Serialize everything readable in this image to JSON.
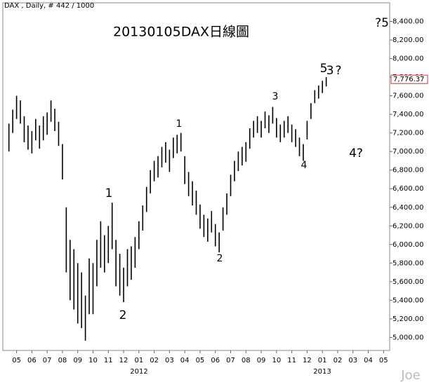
{
  "chart_data": {
    "type": "range-bar",
    "title": "20130105DAX日線圖",
    "header": "DAX , Daily, # 442 / 1000",
    "watermark": "Joe",
    "color": "#000000",
    "x": [
      -0.5,
      -0.25,
      0,
      0.25,
      0.5,
      0.75,
      1,
      1.25,
      1.5,
      1.75,
      2,
      2.25,
      2.5,
      2.75,
      3,
      3.25,
      3.5,
      3.75,
      4,
      4.25,
      4.5,
      4.75,
      5,
      5.25,
      5.5,
      5.75,
      6,
      6.25,
      6.5,
      6.75,
      7,
      7.25,
      7.5,
      7.75,
      8,
      8.25,
      8.5,
      8.75,
      9,
      9.25,
      9.5,
      9.75,
      10,
      10.25,
      10.5,
      10.75,
      11,
      11.25,
      11.5,
      11.75,
      12,
      12.25,
      12.5,
      12.75,
      13,
      13.25,
      13.5,
      13.75,
      14,
      14.25,
      14.5,
      14.75,
      15,
      15.25,
      15.5,
      15.75,
      16,
      16.25,
      16.5,
      16.75,
      17,
      17.25,
      17.5,
      17.75,
      18,
      18.25,
      18.5,
      18.75,
      19,
      19.25,
      19.5,
      19.75,
      20,
      20.25
    ],
    "high": [
      7300,
      7450,
      7600,
      7550,
      7380,
      7280,
      7220,
      7350,
      7280,
      7380,
      7420,
      7550,
      7460,
      7320,
      7080,
      6400,
      6050,
      5950,
      5800,
      5700,
      5450,
      5850,
      5800,
      6050,
      6250,
      6100,
      6200,
      6450,
      6050,
      5900,
      5750,
      5950,
      5980,
      6080,
      6250,
      6420,
      6620,
      6800,
      6900,
      6950,
      7050,
      7100,
      7020,
      7150,
      7180,
      7200,
      6950,
      6780,
      6680,
      6580,
      6430,
      6320,
      6280,
      6360,
      6220,
      6130,
      6400,
      6550,
      6750,
      6900,
      7000,
      7050,
      7100,
      7250,
      7330,
      7380,
      7330,
      7430,
      7390,
      7480,
      7360,
      7290,
      7330,
      7380,
      7290,
      7240,
      7150,
      7080,
      7330,
      7520,
      7660,
      7710,
      7760,
      7800
    ],
    "low": [
      7000,
      7200,
      7350,
      7300,
      7100,
      7020,
      6980,
      7120,
      7030,
      7120,
      7180,
      7320,
      7220,
      7060,
      6700,
      5700,
      5400,
      5300,
      5150,
      5100,
      4965,
      5250,
      5250,
      5550,
      5750,
      5700,
      5800,
      5950,
      5550,
      5450,
      5380,
      5550,
      5620,
      5750,
      5950,
      6150,
      6350,
      6550,
      6680,
      6720,
      6830,
      6880,
      6780,
      6930,
      6980,
      7000,
      6650,
      6520,
      6420,
      6320,
      6170,
      6080,
      6030,
      6130,
      5980,
      5915,
      6150,
      6320,
      6520,
      6680,
      6790,
      6850,
      6890,
      7030,
      7150,
      7200,
      7150,
      7250,
      7200,
      7300,
      7150,
      7100,
      7150,
      7200,
      7100,
      7050,
      6950,
      6900,
      7130,
      7350,
      7520,
      7570,
      7630,
      7700
    ],
    "last_value": 7776.37,
    "last_value_label": "7,776.37",
    "last_value_color": "#e03030",
    "xlim": [
      -0.9,
      24.4
    ],
    "ylim": [
      4860,
      8600
    ],
    "xticks": [
      {
        "value": 0,
        "label": "05"
      },
      {
        "value": 1,
        "label": "06"
      },
      {
        "value": 2,
        "label": "07"
      },
      {
        "value": 3,
        "label": "08"
      },
      {
        "value": 4,
        "label": "09"
      },
      {
        "value": 5,
        "label": "10"
      },
      {
        "value": 6,
        "label": "11"
      },
      {
        "value": 7,
        "label": "12"
      },
      {
        "value": 8,
        "label": "01"
      },
      {
        "value": 9,
        "label": "02"
      },
      {
        "value": 10,
        "label": "03"
      },
      {
        "value": 11,
        "label": "04"
      },
      {
        "value": 12,
        "label": "05"
      },
      {
        "value": 13,
        "label": "06"
      },
      {
        "value": 14,
        "label": "07"
      },
      {
        "value": 15,
        "label": "08"
      },
      {
        "value": 16,
        "label": "09"
      },
      {
        "value": 17,
        "label": "10"
      },
      {
        "value": 18,
        "label": "11"
      },
      {
        "value": 19,
        "label": "12"
      },
      {
        "value": 20,
        "label": "01"
      },
      {
        "value": 21,
        "label": "02"
      },
      {
        "value": 22,
        "label": "03"
      },
      {
        "value": 23,
        "label": "04"
      },
      {
        "value": 24,
        "label": "05"
      }
    ],
    "year_labels": [
      "2012",
      "2013"
    ],
    "yticks": [
      {
        "value": 5000,
        "label": "5,000.00"
      },
      {
        "value": 5200,
        "label": "5,200.00"
      },
      {
        "value": 5400,
        "label": "5,400.00"
      },
      {
        "value": 5600,
        "label": "5,600.00"
      },
      {
        "value": 5800,
        "label": "5,800.00"
      },
      {
        "value": 6000,
        "label": "6,000.00"
      },
      {
        "value": 6200,
        "label": "6,200.00"
      },
      {
        "value": 6400,
        "label": "6,400.00"
      },
      {
        "value": 6600,
        "label": "6,600.00"
      },
      {
        "value": 6800,
        "label": "6,800.00"
      },
      {
        "value": 7000,
        "label": "7,000.00"
      },
      {
        "value": 7200,
        "label": "7,200.00"
      },
      {
        "value": 7400,
        "label": "7,400.00"
      },
      {
        "value": 7600,
        "label": "7,600.00"
      },
      {
        "value": 7800,
        "label": "7,800.00"
      },
      {
        "value": 8000,
        "label": "8,000.00"
      },
      {
        "value": 8200,
        "label": "8,200.00"
      },
      {
        "value": 8400,
        "label": "8,400.00"
      }
    ],
    "annotations": [
      {
        "text": "1",
        "color": "#4060c0"
      },
      {
        "text": "2",
        "color": "#4060c0"
      },
      {
        "text": "1",
        "color": "#e03030"
      },
      {
        "text": "2",
        "color": "#e03030"
      },
      {
        "text": "3",
        "color": "#e03030"
      },
      {
        "text": "4",
        "color": "#e03030"
      },
      {
        "text": "5",
        "color": "#e03030"
      },
      {
        "text": "3",
        "color": "#4060c0"
      },
      {
        "text": "?",
        "color": "#e03030"
      },
      {
        "text": "4?",
        "color": "#4060c0"
      },
      {
        "text": "?5",
        "color": "#4060c0"
      }
    ]
  }
}
